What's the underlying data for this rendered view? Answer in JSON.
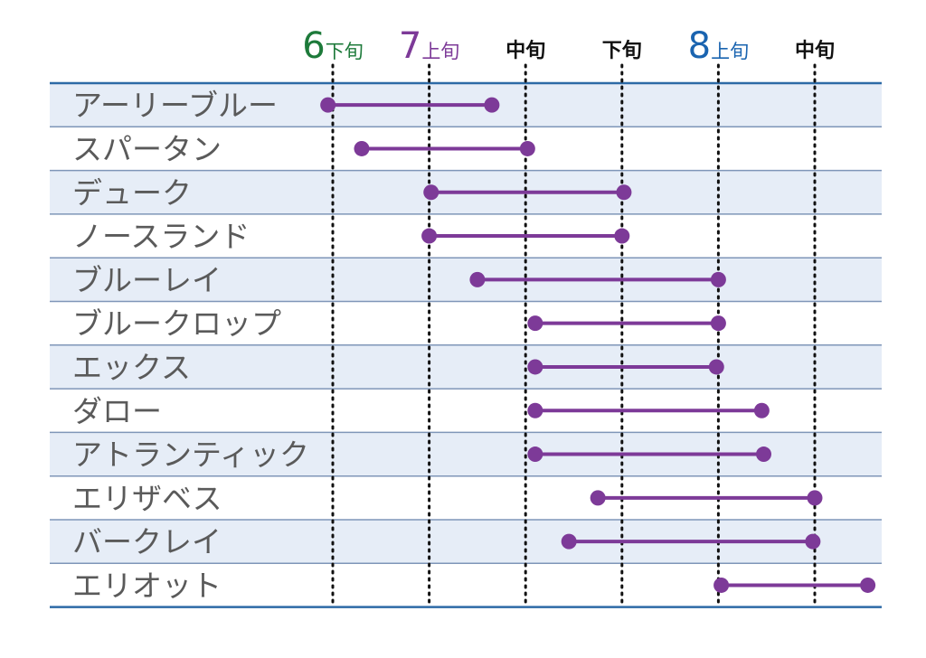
{
  "chart_data": {
    "type": "range",
    "headers": [
      {
        "month": "6",
        "part": "下旬",
        "color": "#1d7a3a"
      },
      {
        "month": "7",
        "part": "上旬",
        "color": "#7d3a98"
      },
      {
        "month": "",
        "part": "中旬",
        "color": "#111111"
      },
      {
        "month": "",
        "part": "下旬",
        "color": "#111111"
      },
      {
        "month": "8",
        "part": "上旬",
        "color": "#1a64b0"
      },
      {
        "month": "",
        "part": "中旬",
        "color": "#111111"
      }
    ],
    "rows": [
      {
        "label": "アーリーブルー",
        "start": -0.05,
        "end": 1.65
      },
      {
        "label": "スパータン",
        "start": 0.3,
        "end": 2.02
      },
      {
        "label": "デューク",
        "start": 1.02,
        "end": 3.02
      },
      {
        "label": "ノースランド",
        "start": 1.0,
        "end": 3.0
      },
      {
        "label": "ブルーレイ",
        "start": 1.5,
        "end": 4.0
      },
      {
        "label": "ブルークロップ",
        "start": 2.1,
        "end": 4.0
      },
      {
        "label": "エックス",
        "start": 2.1,
        "end": 3.98
      },
      {
        "label": "ダロー",
        "start": 2.1,
        "end": 4.45
      },
      {
        "label": "アトランティック",
        "start": 2.1,
        "end": 4.47
      },
      {
        "label": "エリザベス",
        "start": 2.75,
        "end": 5.0
      },
      {
        "label": "バークレイ",
        "start": 2.45,
        "end": 4.98
      },
      {
        "label": "エリオット",
        "start": 4.03,
        "end": 5.55
      }
    ],
    "colors": {
      "bar": "#7d3a98",
      "band": "#e6edf7",
      "rule": "#7f96b8",
      "border": "#2d6aa6",
      "dotline": "#111111"
    }
  }
}
